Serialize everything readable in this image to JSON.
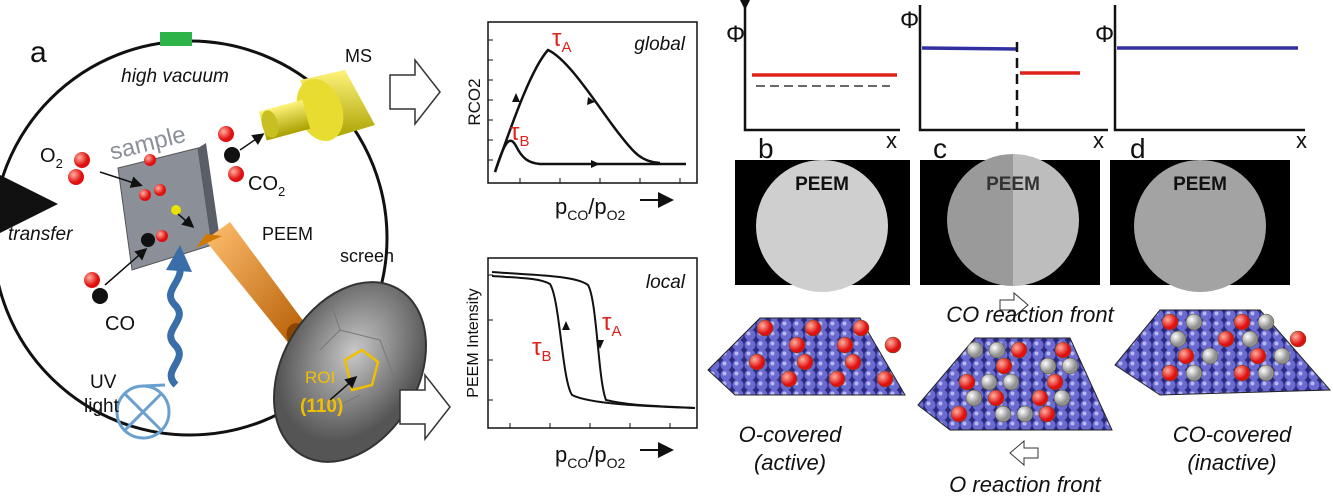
{
  "panel_a": {
    "label": "a",
    "high_vacuum": "high vacuum",
    "ms": "MS",
    "sample": "sample",
    "o2": [
      "O",
      "2"
    ],
    "co2": [
      "CO",
      "2"
    ],
    "transfer": "transfer",
    "peem": "PEEM",
    "screen": "screen",
    "co": "CO",
    "uv": [
      "UV",
      "light"
    ],
    "roi": "ROI",
    "facet": "(110)"
  },
  "global_plot": {
    "tag": "global",
    "ylabel": "RCO2",
    "tau_a": [
      "τ",
      "A"
    ],
    "tau_b": [
      "τ",
      "B"
    ],
    "xlabel": [
      "p",
      "CO",
      "/p",
      "O2"
    ]
  },
  "local_plot": {
    "tag": "local",
    "ylabel": "PEEM Intensity",
    "tau_b": [
      "τ",
      "B"
    ],
    "tau_a": [
      "τ",
      "A"
    ],
    "xlabel": [
      "p",
      "CO",
      "/p",
      "O2"
    ]
  },
  "panels": [
    {
      "label": "b",
      "y_axis": "Φ",
      "x_axis": "x",
      "peem": "PEEM"
    },
    {
      "label": "c",
      "y_axis": "Φ",
      "x_axis": "x",
      "peem": "PEEM"
    },
    {
      "label": "d",
      "y_axis": "Φ",
      "x_axis": "x",
      "peem": "PEEM"
    }
  ],
  "captions": {
    "co_front": "CO reaction front",
    "o_front": "O reaction front",
    "o_covered": [
      "O-covered",
      "(active)"
    ],
    "co_covered": [
      "CO-covered",
      "(inactive)"
    ]
  }
}
